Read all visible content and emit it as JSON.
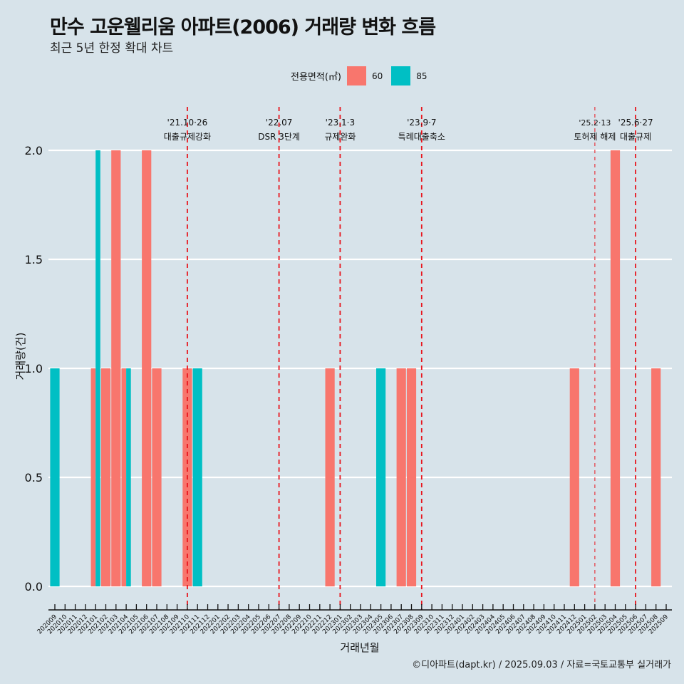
{
  "header": {
    "title": "만수 고운웰리움 아파트(2006) 거래량 변화 흐름",
    "subtitle": "최근 5년 한정 확대 차트"
  },
  "legend": {
    "title": "전용면적(㎡)",
    "items": [
      {
        "label": "60",
        "color": "#F8766D"
      },
      {
        "label": "85",
        "color": "#00BFC4"
      }
    ]
  },
  "footer": "©디아파트(dapt.kr) / 2025.09.03 / 자료=국토교통부 실거래가",
  "chart_data": {
    "type": "bar",
    "title": "만수 고운웰리움 아파트(2006) 거래량 변화 흐름",
    "subtitle": "최근 5년 한정 확대 차트",
    "xlabel": "거래년월",
    "ylabel": "거래량(건)",
    "ylim": [
      0,
      2
    ],
    "yticks": [
      "0.0",
      "0.5",
      "1.0",
      "1.5",
      "2.0"
    ],
    "ytick_values": [
      0,
      0.5,
      1.0,
      1.5,
      2.0
    ],
    "grid": true,
    "legend_position": "top",
    "categories": [
      "202009",
      "202010",
      "202011",
      "202012",
      "202101",
      "202102",
      "202103",
      "202104",
      "202105",
      "202106",
      "202107",
      "202108",
      "202109",
      "202110",
      "202111",
      "202112",
      "202201",
      "202202",
      "202203",
      "202204",
      "202205",
      "202206",
      "202207",
      "202208",
      "202209",
      "202210",
      "202211",
      "202212",
      "202301",
      "202302",
      "202303",
      "202304",
      "202305",
      "202306",
      "202307",
      "202308",
      "202309",
      "202310",
      "202311",
      "202312",
      "202401",
      "202402",
      "202403",
      "202404",
      "202405",
      "202406",
      "202407",
      "202408",
      "202409",
      "202410",
      "202411",
      "202412",
      "202501",
      "202502",
      "202503",
      "202504",
      "202505",
      "202506",
      "202507",
      "202508",
      "202509"
    ],
    "series": [
      {
        "name": "60",
        "color": "#F8766D",
        "values": {
          "202101": 1,
          "202102": 1,
          "202103": 2,
          "202104": 1,
          "202106": 2,
          "202107": 1,
          "202110": 1,
          "202212": 1,
          "202307": 1,
          "202308": 1,
          "202412": 1,
          "202504": 2,
          "202508": 1
        }
      },
      {
        "name": "85",
        "color": "#00BFC4",
        "values": {
          "202009": 1,
          "202101": 2,
          "202104": 1,
          "202111": 1,
          "202305": 1
        }
      }
    ],
    "annotations": [
      {
        "month": "202110",
        "date": "'21.10·26",
        "label": "대출규제강화",
        "style": "thick"
      },
      {
        "month": "202207",
        "date": "'22.07",
        "label": "DSR 3단계",
        "style": "thick"
      },
      {
        "month": "202301",
        "date": "'23.1·3",
        "label": "규제완화",
        "style": "thick"
      },
      {
        "month": "202309",
        "date": "'23.9·7",
        "label": "특례대출축소",
        "style": "thick"
      },
      {
        "month": "202502",
        "date": "'25.2·13",
        "label": "토허제 해제",
        "style": "thin"
      },
      {
        "month": "202506",
        "date": "'25.6·27",
        "label": "대출규제",
        "style": "thick"
      }
    ]
  }
}
